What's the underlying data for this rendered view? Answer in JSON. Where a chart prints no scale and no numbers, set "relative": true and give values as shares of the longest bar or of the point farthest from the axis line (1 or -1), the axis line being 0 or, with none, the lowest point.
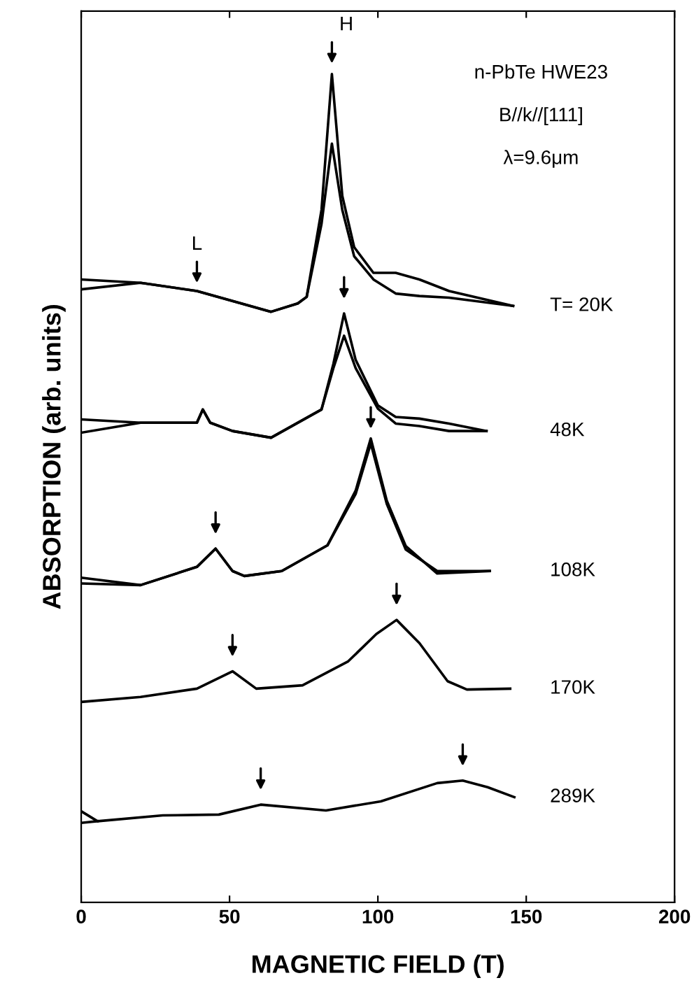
{
  "chart_data": {
    "type": "line",
    "relative": true,
    "xlabel": "MAGNETIC FIELD (T)",
    "ylabel": "ABSORPTION (arb. units)",
    "xlim": [
      0,
      200
    ],
    "xticks": [
      0,
      50,
      100,
      150,
      200
    ],
    "tick_labels": "x",
    "grid": false,
    "marker": "none",
    "line_style": "solid",
    "series": [
      {
        "name": "T= 20K",
        "color": "#000000",
        "x": [
          0,
          20,
          39,
          51,
          64,
          73,
          76,
          81,
          84.5,
          88,
          92,
          98.5,
          106,
          114,
          124,
          145.6
        ],
        "values": [
          0.752,
          0.748,
          0.738,
          0.726,
          0.713,
          0.723,
          0.731,
          0.836,
          1.0,
          0.853,
          0.791,
          0.76,
          0.76,
          0.752,
          0.738,
          0.72
        ]
      },
      {
        "color": "#000000",
        "x": [
          0,
          20,
          39,
          51,
          64,
          73,
          76,
          81,
          84.5,
          88,
          92,
          98.5,
          106,
          114,
          124,
          145.6
        ],
        "values": [
          0.74,
          0.748,
          0.738,
          0.726,
          0.713,
          0.723,
          0.731,
          0.819,
          0.916,
          0.836,
          0.78,
          0.752,
          0.735,
          0.732,
          0.73,
          0.72
        ]
      },
      {
        "name": "48K",
        "color": "#000000",
        "x": [
          0,
          20,
          39,
          41,
          43.5,
          51,
          64,
          81,
          85,
          88.6,
          92.5,
          100,
          106,
          114,
          124,
          136.6
        ],
        "values": [
          0.583,
          0.579,
          0.579,
          0.595,
          0.579,
          0.569,
          0.561,
          0.595,
          0.65,
          0.711,
          0.655,
          0.6,
          0.586,
          0.584,
          0.578,
          0.569
        ]
      },
      {
        "color": "#000000",
        "x": [
          0,
          20,
          39,
          41,
          43.5,
          51,
          64,
          81,
          85,
          88.6,
          92.5,
          100,
          106,
          114,
          124,
          136.6
        ],
        "values": [
          0.567,
          0.579,
          0.579,
          0.595,
          0.579,
          0.569,
          0.561,
          0.595,
          0.645,
          0.684,
          0.645,
          0.596,
          0.578,
          0.575,
          0.569,
          0.569
        ]
      },
      {
        "name": "108K",
        "color": "#000000",
        "x": [
          0,
          20,
          39,
          45.3,
          51,
          55,
          67.6,
          83,
          92.5,
          97.6,
          103,
          109.4,
          120,
          137.7
        ],
        "values": [
          0.385,
          0.383,
          0.405,
          0.427,
          0.4,
          0.394,
          0.4,
          0.431,
          0.493,
          0.554,
          0.481,
          0.426,
          0.4,
          0.4
        ]
      },
      {
        "color": "#000000",
        "x": [
          0,
          20,
          39,
          45.3,
          51,
          55,
          67.6,
          83,
          92.5,
          97.6,
          103,
          109.4,
          120,
          137.7
        ],
        "values": [
          0.392,
          0.383,
          0.405,
          0.427,
          0.4,
          0.394,
          0.4,
          0.431,
          0.497,
          0.56,
          0.485,
          0.43,
          0.397,
          0.4
        ]
      },
      {
        "name": "170K",
        "color": "#000000",
        "x": [
          0,
          20,
          39,
          51,
          59,
          74.6,
          90,
          99.5,
          106.3,
          114,
          123.5,
          130,
          144.6
        ],
        "values": [
          0.242,
          0.248,
          0.258,
          0.279,
          0.258,
          0.262,
          0.291,
          0.324,
          0.341,
          0.313,
          0.267,
          0.257,
          0.258
        ]
      },
      {
        "name": "289K",
        "color": "#000000",
        "x": [
          0,
          5.5,
          27.5,
          46.4,
          60.5,
          82.5,
          101,
          120,
          128.6,
          137,
          146
        ],
        "values": [
          0.11,
          0.098,
          0.105,
          0.106,
          0.118,
          0.111,
          0.122,
          0.144,
          0.147,
          0.139,
          0.127
        ]
      },
      {
        "color": "#000000",
        "x": [
          0,
          5.5
        ],
        "values": [
          0.096,
          0.098
        ]
      }
    ],
    "annotations": [
      "n-PbTe HWE23",
      "B//k//[111]",
      "λ=9.6μm",
      {
        "text": "H",
        "x": 84.5,
        "y": 1.008
      },
      {
        "text": "L",
        "x": 39,
        "y": 0.743
      }
    ]
  }
}
